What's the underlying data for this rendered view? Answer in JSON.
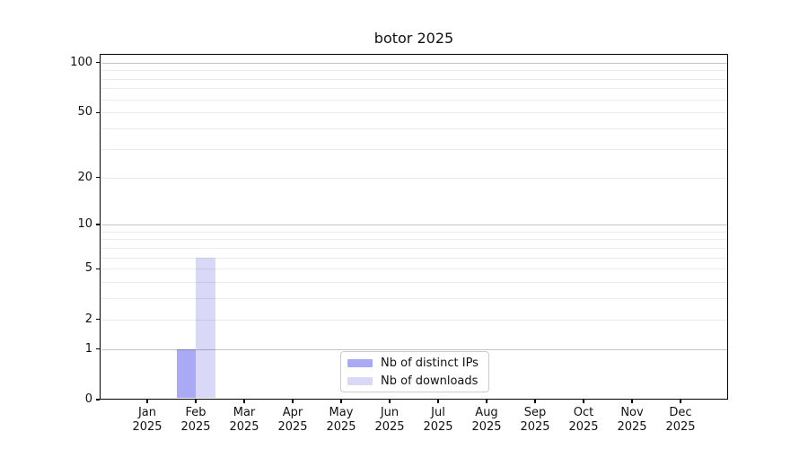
{
  "chart_data": {
    "type": "bar",
    "title": "botor 2025",
    "x": {
      "categories": [
        "Jan",
        "Feb",
        "Mar",
        "Apr",
        "May",
        "Jun",
        "Jul",
        "Aug",
        "Sep",
        "Oct",
        "Nov",
        "Dec"
      ],
      "year": "2025"
    },
    "y": {
      "scale": "log1p",
      "lim": [
        0,
        113
      ],
      "tick_values": [
        0,
        1,
        2,
        5,
        10,
        20,
        50,
        100
      ],
      "tick_labels": [
        "0",
        "1",
        "2",
        "5",
        "10",
        "20",
        "50",
        "100"
      ],
      "grid_major": [
        1,
        10,
        100
      ],
      "grid_minor": [
        2,
        3,
        4,
        5,
        6,
        7,
        8,
        9,
        20,
        30,
        40,
        50,
        60,
        70,
        80,
        90
      ],
      "grid": true
    },
    "series": [
      {
        "name": "Nb of distinct IPs",
        "color": "#a9a9f5",
        "values": [
          0,
          1,
          0,
          0,
          0,
          0,
          0,
          0,
          0,
          0,
          0,
          0
        ]
      },
      {
        "name": "Nb of downloads",
        "color": "#d9d9f7",
        "values": [
          0,
          6,
          0,
          0,
          0,
          0,
          0,
          0,
          0,
          0,
          0,
          0
        ]
      }
    ],
    "legend": {
      "position": "bottom-center-inside"
    }
  }
}
